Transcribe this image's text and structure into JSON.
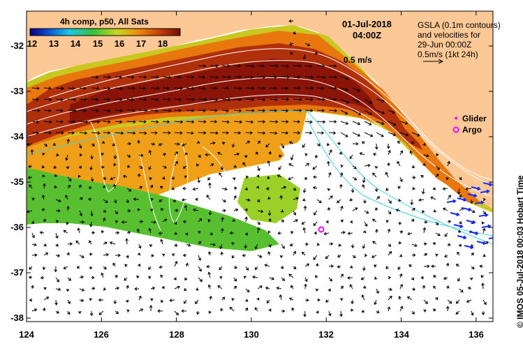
{
  "colorbar": {
    "title": "4h comp, p50, All Sats",
    "ticks": [
      "12",
      "13",
      "14",
      "15",
      "16",
      "17",
      "18"
    ],
    "colors": [
      "#08007a",
      "#0a4fd8",
      "#18c8e8",
      "#36c23a",
      "#c8d81e",
      "#f08a0a",
      "#c4400a",
      "#7a0a0a"
    ]
  },
  "timestamp": {
    "date": "01-Jul-2018",
    "time": "04:00Z"
  },
  "legend": {
    "line1": "GSLA (0.1m contours)",
    "line2": "and velocities for",
    "line3": "29-Jun 00:00Z",
    "line4": "0.5m/s (1kt 24h)",
    "scale_label": "0.5 m/s",
    "glider_label": "Glider",
    "argo_label": "Argo",
    "glider_color": "#ff00ff",
    "argo_color": "#ff00ff"
  },
  "credit": "© IMOS 05-Jul-2018 00:03 Hobart Time",
  "axes": {
    "y_ticks": [
      "-32",
      "-33",
      "-34",
      "-35",
      "-36",
      "-37",
      "-38"
    ],
    "x_ticks": [
      "124",
      "126",
      "128",
      "130",
      "132",
      "134",
      "136"
    ]
  },
  "colors": {
    "land": "#fcc896",
    "nodata": "#ffffff",
    "warm_core": "#9a1a0a",
    "contour": "#ffffff",
    "cyan_contour": "#3fd0e0",
    "vectors": "#000000",
    "altimetry_vectors": "#1a2aff"
  },
  "argo_position": {
    "lon": 131.9,
    "lat": -36.06
  }
}
